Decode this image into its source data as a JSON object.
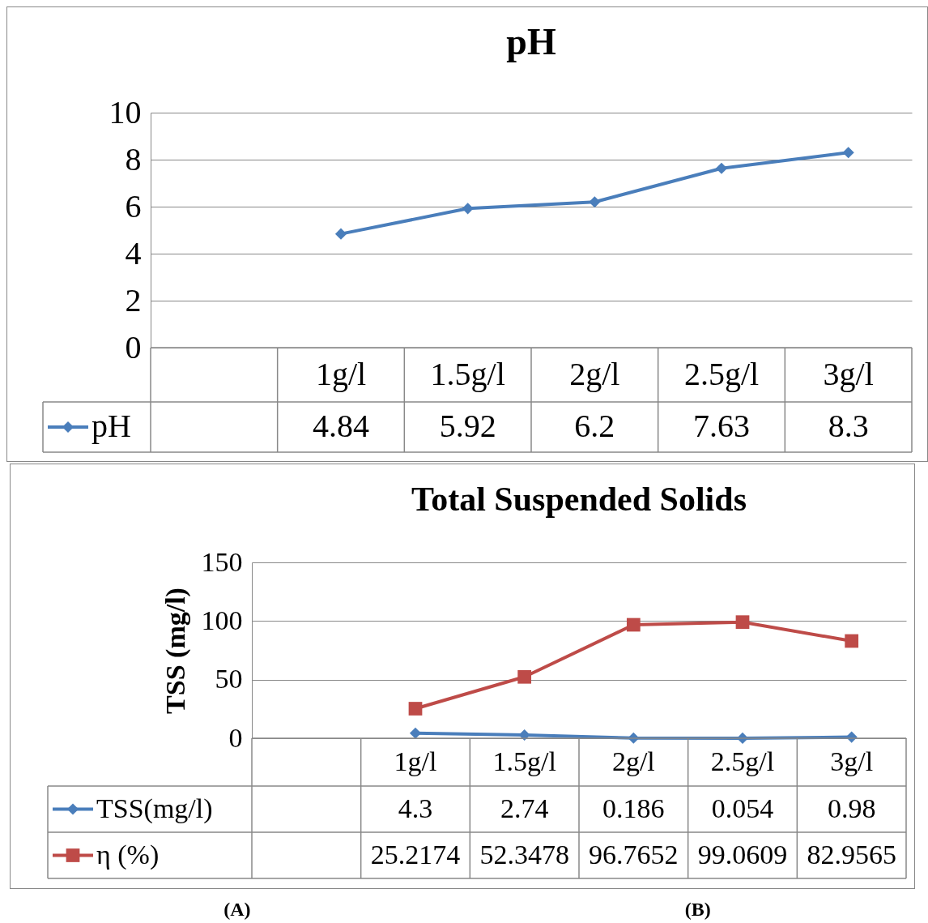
{
  "chart_data": [
    {
      "type": "line",
      "title": "pH",
      "categories": [
        null,
        "1g/l",
        "1.5g/l",
        "2g/l",
        "2.5g/l",
        "3g/l"
      ],
      "series": [
        {
          "name": "pH",
          "color": "#4a7ebb",
          "marker": "diamond",
          "values": [
            null,
            4.84,
            5.92,
            6.2,
            7.63,
            8.3
          ]
        }
      ],
      "ylim": [
        0,
        10
      ],
      "yticks": [
        0,
        2,
        4,
        6,
        8,
        10
      ],
      "grid": "y",
      "legend": "bottom",
      "data_labels": true,
      "line_style": "solid"
    },
    {
      "type": "line",
      "title": "Total Suspended Solids",
      "ylabel": "TSS (mg/l)",
      "categories": [
        null,
        "1g/l",
        "1.5g/l",
        "2g/l",
        "2.5g/l",
        "3g/l"
      ],
      "series": [
        {
          "name": "TSS(mg/l)",
          "color": "#4a7ebb",
          "marker": "diamond",
          "values": [
            null,
            4.3,
            2.74,
            0.186,
            0.054,
            0.98
          ]
        },
        {
          "name": "η (%)",
          "color": "#be4b48",
          "marker": "square",
          "values": [
            null,
            25.2174,
            52.3478,
            96.7652,
            99.0609,
            82.9565
          ]
        }
      ],
      "ylim": [
        0,
        150
      ],
      "yticks": [
        0,
        50,
        100,
        150
      ],
      "grid": "y",
      "legend": "bottom",
      "data_labels": true,
      "line_style": "solid",
      "annotations": [
        "(A)",
        "(B)"
      ]
    }
  ]
}
